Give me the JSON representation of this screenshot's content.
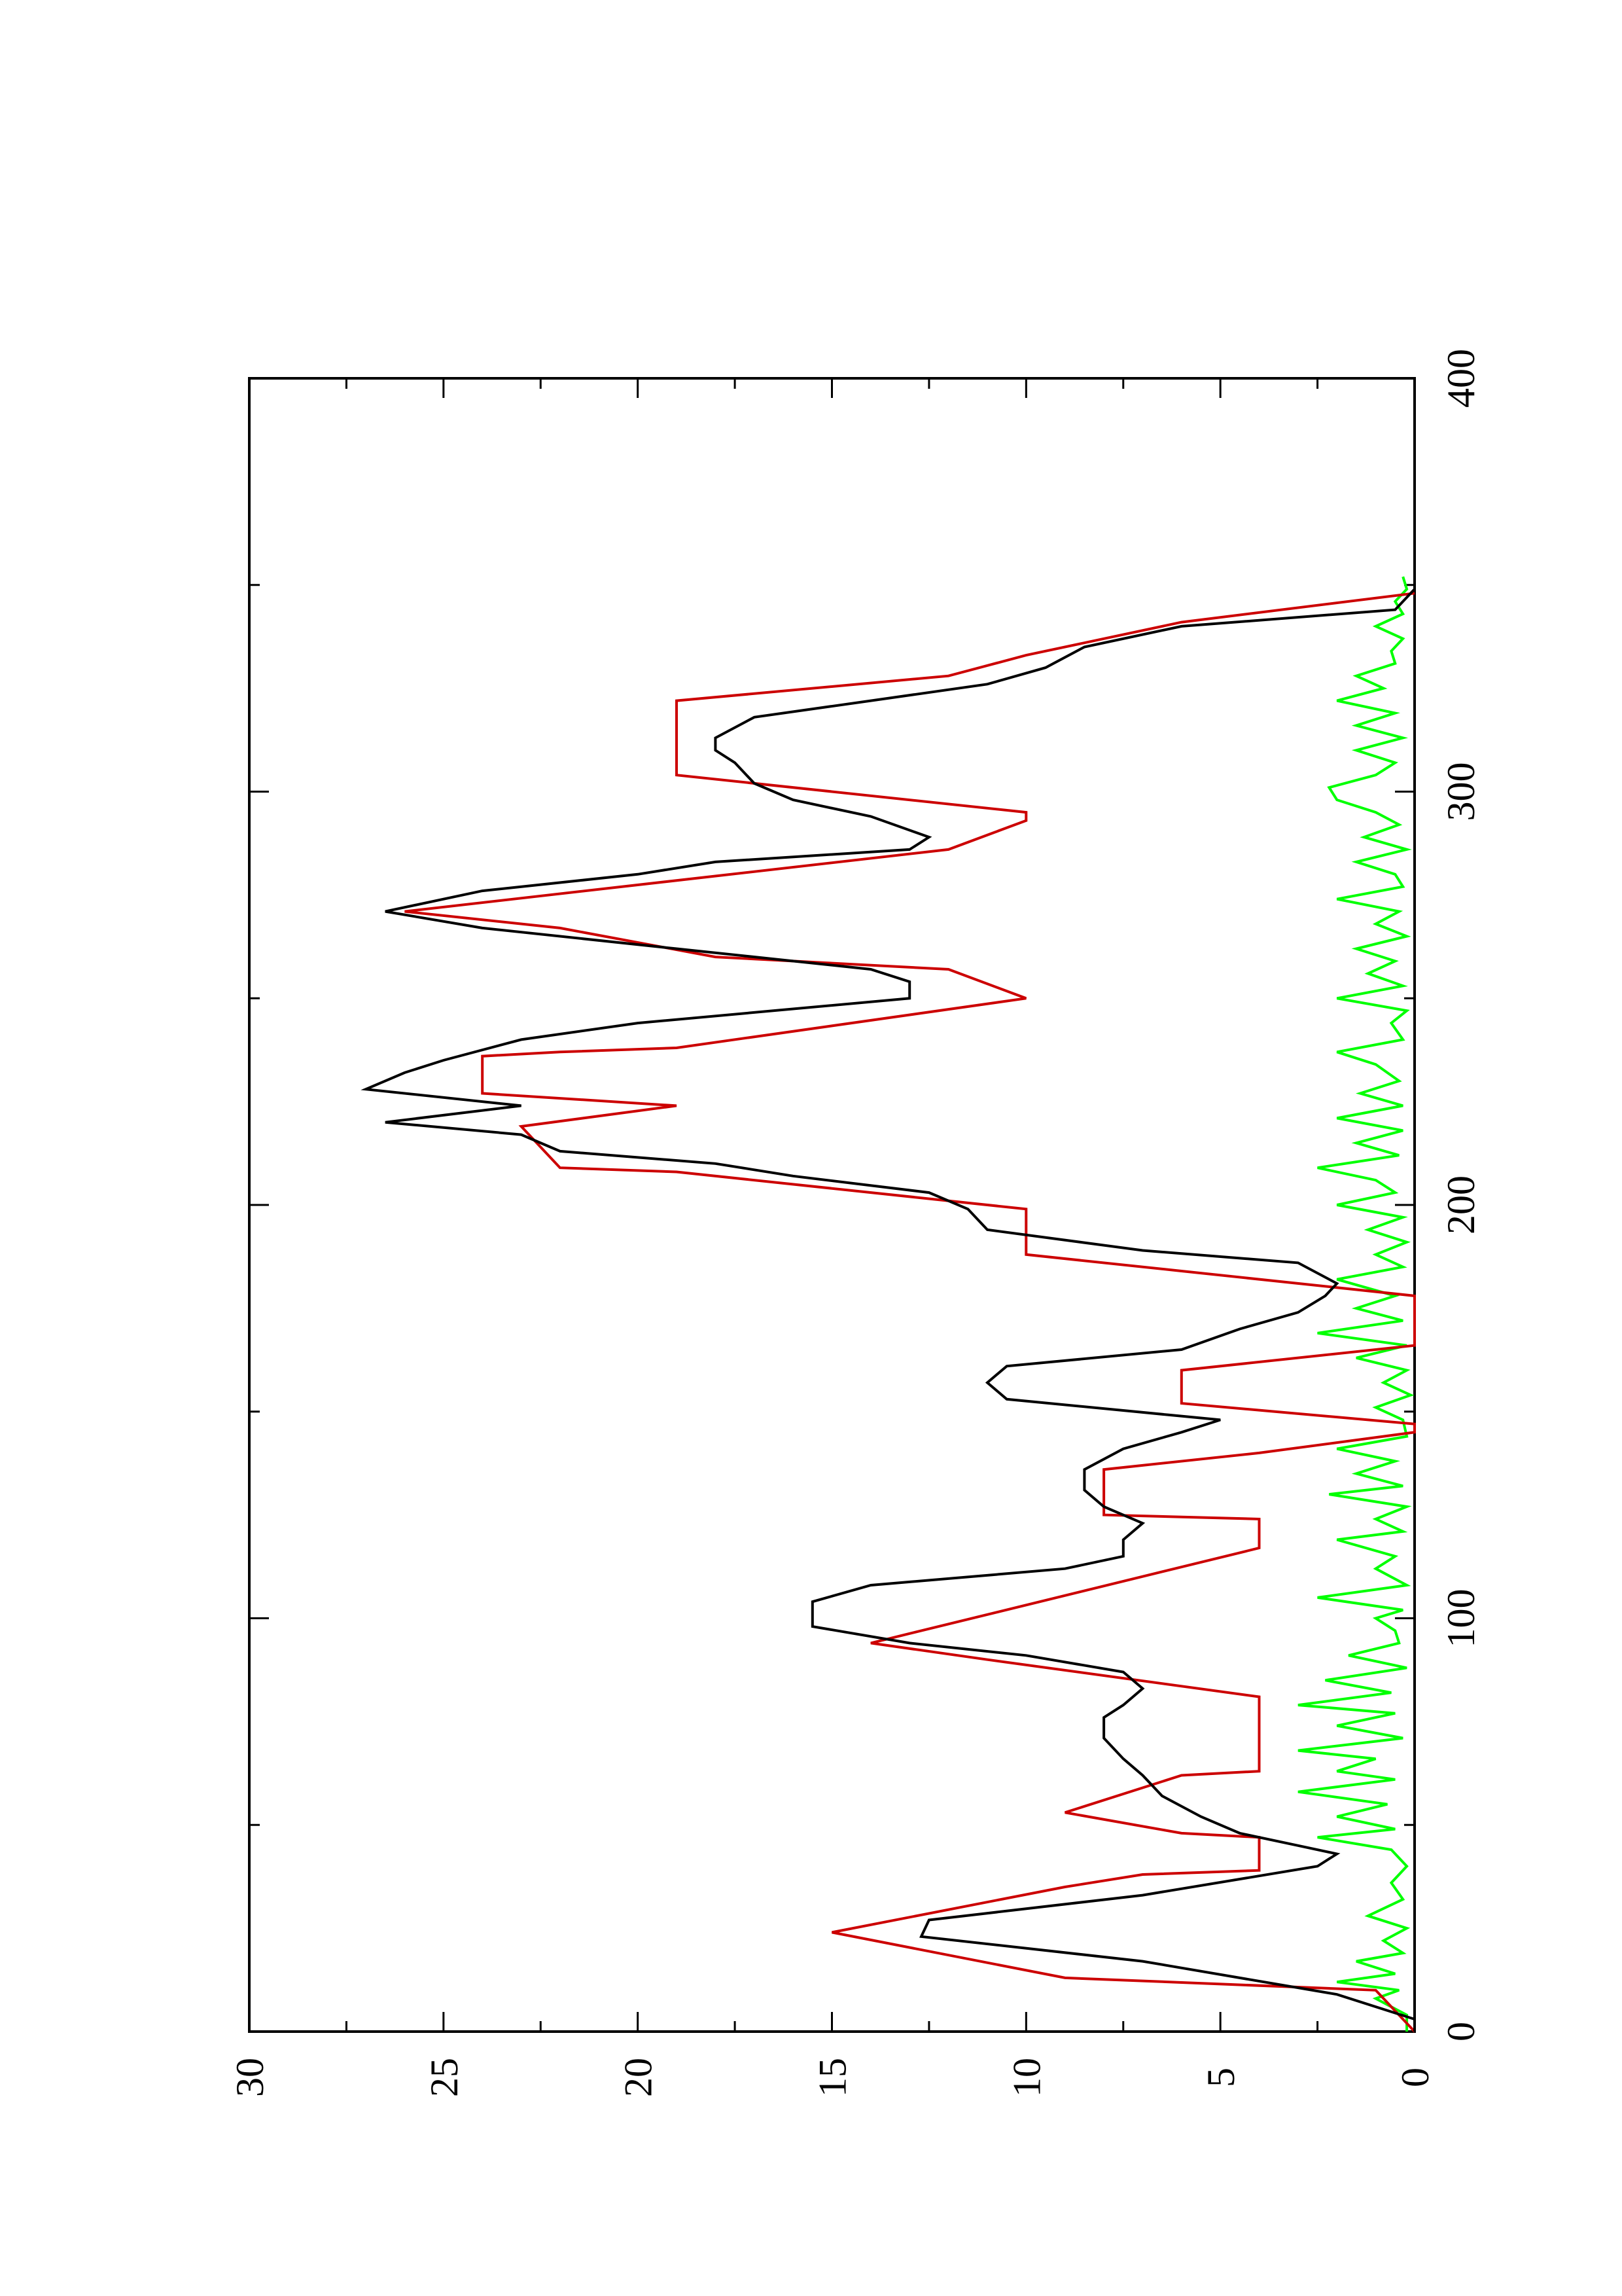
{
  "chart_data": {
    "type": "line",
    "orientation": "rotated 90° counter-clockwise (page in landscape, printed portrait)",
    "title": "",
    "xlabel": "",
    "ylabel": "",
    "xlim": [
      0,
      400
    ],
    "ylim": [
      0,
      30
    ],
    "x_ticks": [
      "0",
      "100",
      "200",
      "300",
      "400"
    ],
    "y_ticks": [
      "0",
      "5",
      "10",
      "15",
      "20",
      "25",
      "30"
    ],
    "grid": false,
    "legend": "none",
    "series": [
      {
        "color": "#cc0000",
        "points": [
          [
            0,
            0
          ],
          [
            10,
            1
          ],
          [
            13,
            9
          ],
          [
            24,
            15
          ],
          [
            35,
            9
          ],
          [
            38,
            7
          ],
          [
            39,
            4
          ],
          [
            47,
            4
          ],
          [
            48,
            6
          ],
          [
            53,
            9
          ],
          [
            62,
            6
          ],
          [
            63,
            4
          ],
          [
            81,
            4
          ],
          [
            90,
            11
          ],
          [
            94,
            14
          ],
          [
            117,
            4
          ],
          [
            124,
            4
          ],
          [
            125,
            8
          ],
          [
            136,
            8
          ],
          [
            140,
            4
          ],
          [
            145,
            0
          ],
          [
            147,
            0
          ],
          [
            152,
            6
          ],
          [
            160,
            6
          ],
          [
            166,
            0
          ],
          [
            177,
            0
          ],
          [
            178,
            0
          ],
          [
            184,
            6
          ],
          [
            188,
            10
          ],
          [
            199,
            10
          ],
          [
            208,
            19
          ],
          [
            209,
            22
          ],
          [
            219,
            23
          ],
          [
            224,
            19
          ],
          [
            227,
            24
          ],
          [
            236,
            24
          ],
          [
            237,
            22
          ],
          [
            238,
            19
          ],
          [
            250,
            10
          ],
          [
            250,
            10
          ],
          [
            257,
            12
          ],
          [
            260,
            18
          ],
          [
            267,
            22
          ],
          [
            271,
            26
          ],
          [
            286,
            12
          ],
          [
            293,
            10
          ],
          [
            295,
            10
          ],
          [
            304,
            19
          ],
          [
            322,
            19
          ],
          [
            328,
            12
          ],
          [
            333,
            10
          ],
          [
            341,
            6
          ],
          [
            348,
            0
          ]
        ]
      },
      {
        "color": "#000000",
        "points": [
          [
            0,
            0
          ],
          [
            3,
            0
          ],
          [
            9,
            2
          ],
          [
            17,
            7
          ],
          [
            23,
            12.7
          ],
          [
            27,
            12.5
          ],
          [
            33,
            7
          ],
          [
            40,
            2.5
          ],
          [
            43,
            2
          ],
          [
            45,
            3
          ],
          [
            48,
            4.5
          ],
          [
            52,
            5.5
          ],
          [
            57,
            6.5
          ],
          [
            62,
            7
          ],
          [
            66,
            7.5
          ],
          [
            71,
            8
          ],
          [
            76,
            8
          ],
          [
            79,
            7.5
          ],
          [
            83,
            7
          ],
          [
            87,
            7.5
          ],
          [
            91,
            10
          ],
          [
            94,
            13
          ],
          [
            98,
            15.5
          ],
          [
            104,
            15.5
          ],
          [
            108,
            14
          ],
          [
            112,
            9
          ],
          [
            115,
            7.5
          ],
          [
            119,
            7.5
          ],
          [
            123,
            7
          ],
          [
            127,
            8
          ],
          [
            131,
            8.5
          ],
          [
            136,
            8.5
          ],
          [
            141,
            7.5
          ],
          [
            145,
            6
          ],
          [
            148,
            5
          ],
          [
            153,
            10.5
          ],
          [
            157,
            11
          ],
          [
            161,
            10.5
          ],
          [
            165,
            6
          ],
          [
            170,
            4.5
          ],
          [
            174,
            3
          ],
          [
            178,
            2.3
          ],
          [
            181,
            2
          ],
          [
            186,
            3
          ],
          [
            189,
            7
          ],
          [
            194,
            11
          ],
          [
            199,
            11.5
          ],
          [
            203,
            12.5
          ],
          [
            207,
            16
          ],
          [
            210,
            18
          ],
          [
            213,
            22
          ],
          [
            217,
            23
          ],
          [
            220,
            26.5
          ],
          [
            224,
            23
          ],
          [
            228,
            27
          ],
          [
            232,
            26
          ],
          [
            235,
            25
          ],
          [
            240,
            23
          ],
          [
            244,
            20
          ],
          [
            250,
            13
          ],
          [
            254,
            13
          ],
          [
            257,
            14
          ],
          [
            262,
            19
          ],
          [
            267,
            24
          ],
          [
            271,
            26.5
          ],
          [
            276,
            24
          ],
          [
            280,
            20
          ],
          [
            283,
            18
          ],
          [
            286,
            13
          ],
          [
            289,
            12.5
          ],
          [
            294,
            14
          ],
          [
            298,
            16
          ],
          [
            302,
            17
          ],
          [
            307,
            17.5
          ],
          [
            310,
            18
          ],
          [
            313,
            18
          ],
          [
            318,
            17
          ],
          [
            322,
            14
          ],
          [
            326,
            11
          ],
          [
            330,
            9.5
          ],
          [
            335,
            8.5
          ],
          [
            340,
            6
          ],
          [
            344,
            0.5
          ],
          [
            349,
            0
          ]
        ]
      },
      {
        "color": "#00ff00",
        "points": [
          [
            0,
            0.2
          ],
          [
            4,
            0.2
          ],
          [
            8,
            1
          ],
          [
            10,
            0.4
          ],
          [
            12,
            2
          ],
          [
            14,
            0.5
          ],
          [
            17,
            1.5
          ],
          [
            19,
            0.3
          ],
          [
            22,
            0.8
          ],
          [
            25,
            0.2
          ],
          [
            28,
            1.2
          ],
          [
            32,
            0.3
          ],
          [
            36,
            0.6
          ],
          [
            40,
            0.2
          ],
          [
            44,
            0.6
          ],
          [
            47,
            2.5
          ],
          [
            49,
            0.5
          ],
          [
            52,
            2
          ],
          [
            55,
            0.7
          ],
          [
            58,
            3
          ],
          [
            61,
            0.5
          ],
          [
            63,
            2
          ],
          [
            66,
            1
          ],
          [
            68,
            3
          ],
          [
            71,
            0.3
          ],
          [
            74,
            2
          ],
          [
            77,
            0.5
          ],
          [
            79,
            3
          ],
          [
            82,
            0.6
          ],
          [
            85,
            2.3
          ],
          [
            88,
            0.2
          ],
          [
            91,
            1.7
          ],
          [
            94,
            0.4
          ],
          [
            97,
            0.5
          ],
          [
            100,
            1
          ],
          [
            102,
            0.3
          ],
          [
            105,
            2.5
          ],
          [
            108,
            0.2
          ],
          [
            112,
            1
          ],
          [
            115,
            0.5
          ],
          [
            119,
            2
          ],
          [
            121,
            0.3
          ],
          [
            124,
            1
          ],
          [
            127,
            0.2
          ],
          [
            130,
            2.2
          ],
          [
            132,
            0.3
          ],
          [
            135,
            1.5
          ],
          [
            138,
            0.5
          ],
          [
            141,
            2
          ],
          [
            144,
            0.2
          ],
          [
            148,
            0.3
          ],
          [
            151,
            1
          ],
          [
            154,
            0.1
          ],
          [
            157,
            0.8
          ],
          [
            160,
            0.2
          ],
          [
            163,
            1.5
          ],
          [
            166,
            0.2
          ],
          [
            169,
            2.5
          ],
          [
            172,
            0.3
          ],
          [
            175,
            1.5
          ],
          [
            178,
            0.5
          ],
          [
            182,
            2
          ],
          [
            185,
            0.3
          ],
          [
            188,
            1
          ],
          [
            191,
            0.2
          ],
          [
            194,
            1.2
          ],
          [
            197,
            0.3
          ],
          [
            200,
            2
          ],
          [
            203,
            0.5
          ],
          [
            206,
            1
          ],
          [
            209,
            2.5
          ],
          [
            212,
            0.4
          ],
          [
            215,
            1.5
          ],
          [
            218,
            0.3
          ],
          [
            221,
            2
          ],
          [
            224,
            0.3
          ],
          [
            227,
            1.4
          ],
          [
            230,
            0.4
          ],
          [
            234,
            1
          ],
          [
            237,
            2
          ],
          [
            240,
            0.3
          ],
          [
            244,
            0.6
          ],
          [
            247,
            0.2
          ],
          [
            250,
            2
          ],
          [
            253,
            0.3
          ],
          [
            256,
            1.2
          ],
          [
            259,
            0.5
          ],
          [
            262,
            1.5
          ],
          [
            265,
            0.2
          ],
          [
            268,
            1
          ],
          [
            271,
            0.4
          ],
          [
            274,
            2
          ],
          [
            277,
            0.3
          ],
          [
            280,
            0.5
          ],
          [
            283,
            1.5
          ],
          [
            286,
            0.2
          ],
          [
            289,
            1.3
          ],
          [
            292,
            0.4
          ],
          [
            295,
            1
          ],
          [
            298,
            2
          ],
          [
            301,
            2.2
          ],
          [
            304,
            1
          ],
          [
            307,
            0.5
          ],
          [
            310,
            1.5
          ],
          [
            313,
            0.3
          ],
          [
            316,
            1.5
          ],
          [
            319,
            0.5
          ],
          [
            322,
            2
          ],
          [
            325,
            0.8
          ],
          [
            328,
            1.5
          ],
          [
            331,
            0.5
          ],
          [
            334,
            0.6
          ],
          [
            337,
            0.3
          ],
          [
            340,
            1
          ],
          [
            343,
            0.3
          ],
          [
            346,
            0.5
          ],
          [
            349,
            0.2
          ],
          [
            352,
            0.3
          ]
        ]
      }
    ]
  }
}
